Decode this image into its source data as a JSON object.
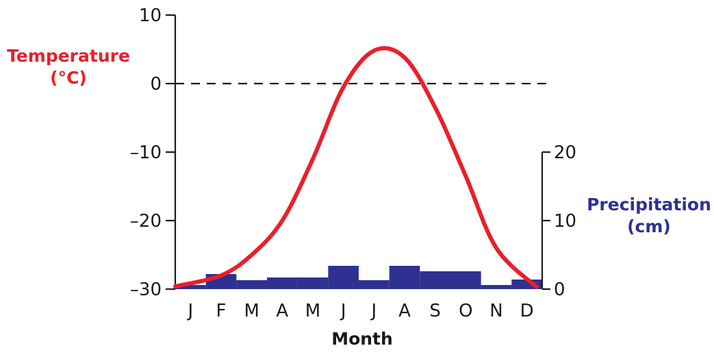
{
  "chart_data": {
    "type": "line",
    "title": "",
    "xlabel": "Month",
    "categories": [
      "J",
      "F",
      "M",
      "A",
      "M",
      "J",
      "J",
      "A",
      "S",
      "O",
      "N",
      "D"
    ],
    "y_left": {
      "label_line1": "Temperature",
      "label_line2": "(°C)",
      "ylim": [
        -30,
        10
      ],
      "ticks": [
        10,
        0,
        -10,
        -20,
        -30
      ],
      "tick_labels": [
        "10",
        "0",
        "–10",
        "–20",
        "–30"
      ],
      "color": "#e8202a"
    },
    "y_right": {
      "label_line1": "Precipitation",
      "label_line2": "(cm)",
      "ylim": [
        0,
        20
      ],
      "ticks": [
        20,
        10,
        0
      ],
      "tick_labels": [
        "20",
        "10",
        "0"
      ],
      "color": "#2e3192"
    },
    "reference_line": {
      "y": 0,
      "style": "dashed"
    },
    "series": [
      {
        "name": "Temperature (°C)",
        "type": "line",
        "color": "#e8202a",
        "values": [
          -29.6,
          -28,
          -25,
          -20,
          -11,
          -0.5,
          4.8,
          3.8,
          -3.5,
          -13.5,
          -24,
          -29.7
        ]
      },
      {
        "name": "Precipitation (cm)",
        "type": "bar",
        "color": "#2e3192",
        "values": [
          0.6,
          2.2,
          1.3,
          1.7,
          1.7,
          3.4,
          1.3,
          3.4,
          2.6,
          2.6,
          0.6,
          1.4
        ]
      }
    ],
    "grid": false
  }
}
